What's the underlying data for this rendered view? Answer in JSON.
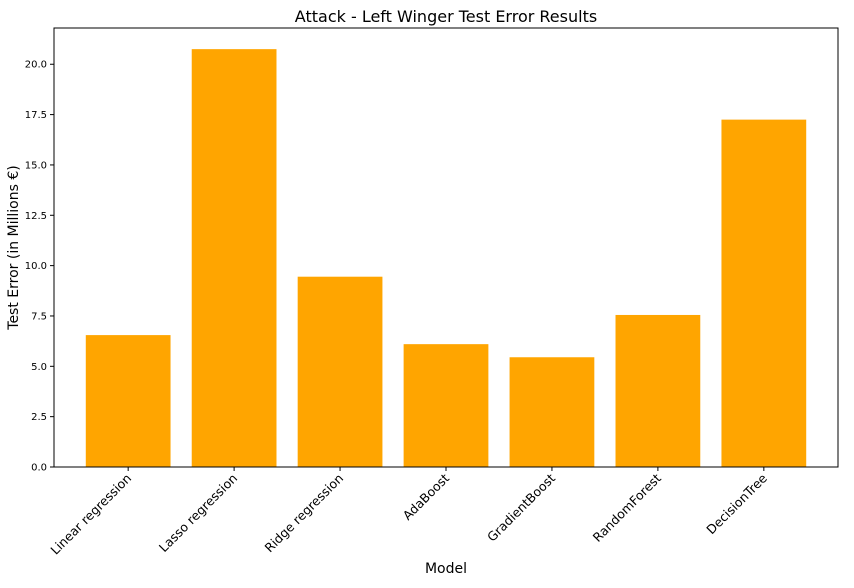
{
  "chart_data": {
    "type": "bar",
    "title": "Attack - Left Winger Test Error Results",
    "xlabel": "Model",
    "ylabel": "Test Error (in Millions €)",
    "categories": [
      "Linear regression",
      "Lasso regression",
      "Ridge regression",
      "AdaBoost",
      "GradientBoost",
      "RandomForest",
      "DecisionTree"
    ],
    "values": [
      6.55,
      20.75,
      9.45,
      6.1,
      5.45,
      7.55,
      17.25
    ],
    "ylim": [
      0,
      21.8
    ],
    "yticks": [
      0.0,
      2.5,
      5.0,
      7.5,
      10.0,
      12.5,
      15.0,
      17.5,
      20.0
    ],
    "ytick_labels": [
      "0.0",
      "2.5",
      "5.0",
      "7.5",
      "10.0",
      "12.5",
      "15.0",
      "17.5",
      "20.0"
    ],
    "bar_color": "#FFA500",
    "grid": false,
    "xtick_rotation_deg": -45
  }
}
